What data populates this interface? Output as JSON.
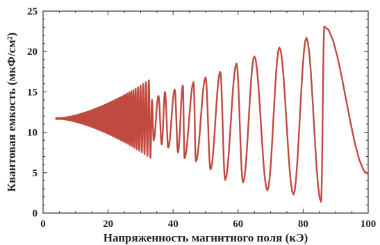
{
  "chart_data": {
    "type": "line",
    "title": "",
    "xlabel": "Напряженность магнитного поля (кЭ)",
    "ylabel": "Квантовая емкость (мкФ/см²)",
    "xlim": [
      0,
      100
    ],
    "ylim": [
      0,
      25
    ],
    "xticks": [
      0,
      20,
      40,
      60,
      80,
      100
    ],
    "yticks": [
      0,
      5,
      10,
      15,
      20,
      25
    ],
    "xtick_labels": [
      "0",
      "20",
      "40",
      "60",
      "80",
      "100"
    ],
    "ytick_labels": [
      "0",
      "5",
      "10",
      "15",
      "20",
      "25"
    ],
    "grid": false,
    "line_color": "#c04a40",
    "series": [
      {
        "name": "",
        "description_of_shape": "damped-to-growing oscillation around 11.7, period proportional to field squared",
        "center": 11.7,
        "start_x": 4,
        "end_x": 100,
        "peaks": [
          [
            86.5,
            23.1
          ],
          [
            81,
            21.7
          ],
          [
            72.7,
            20.5
          ],
          [
            65,
            19.4
          ],
          [
            59.5,
            18.5
          ],
          [
            54.5,
            17.5
          ],
          [
            50,
            16.8
          ],
          [
            46.3,
            16.2
          ],
          [
            43,
            15.8
          ],
          [
            40.5,
            15.3
          ],
          [
            37.5,
            15.0
          ],
          [
            35.5,
            14.5
          ],
          [
            33.5,
            14.0
          ]
        ],
        "troughs": [
          [
            85.5,
            1.4
          ],
          [
            77,
            2.3
          ],
          [
            69,
            2.8
          ],
          [
            61.5,
            3.8
          ],
          [
            56,
            4.1
          ],
          [
            51.5,
            5.4
          ],
          [
            47,
            6.4
          ],
          [
            43.5,
            6.8
          ],
          [
            41.5,
            7.5
          ],
          [
            38.5,
            8.1
          ],
          [
            36.5,
            8.5
          ],
          [
            34,
            9.0
          ]
        ],
        "end_value": 4.8
      }
    ]
  }
}
